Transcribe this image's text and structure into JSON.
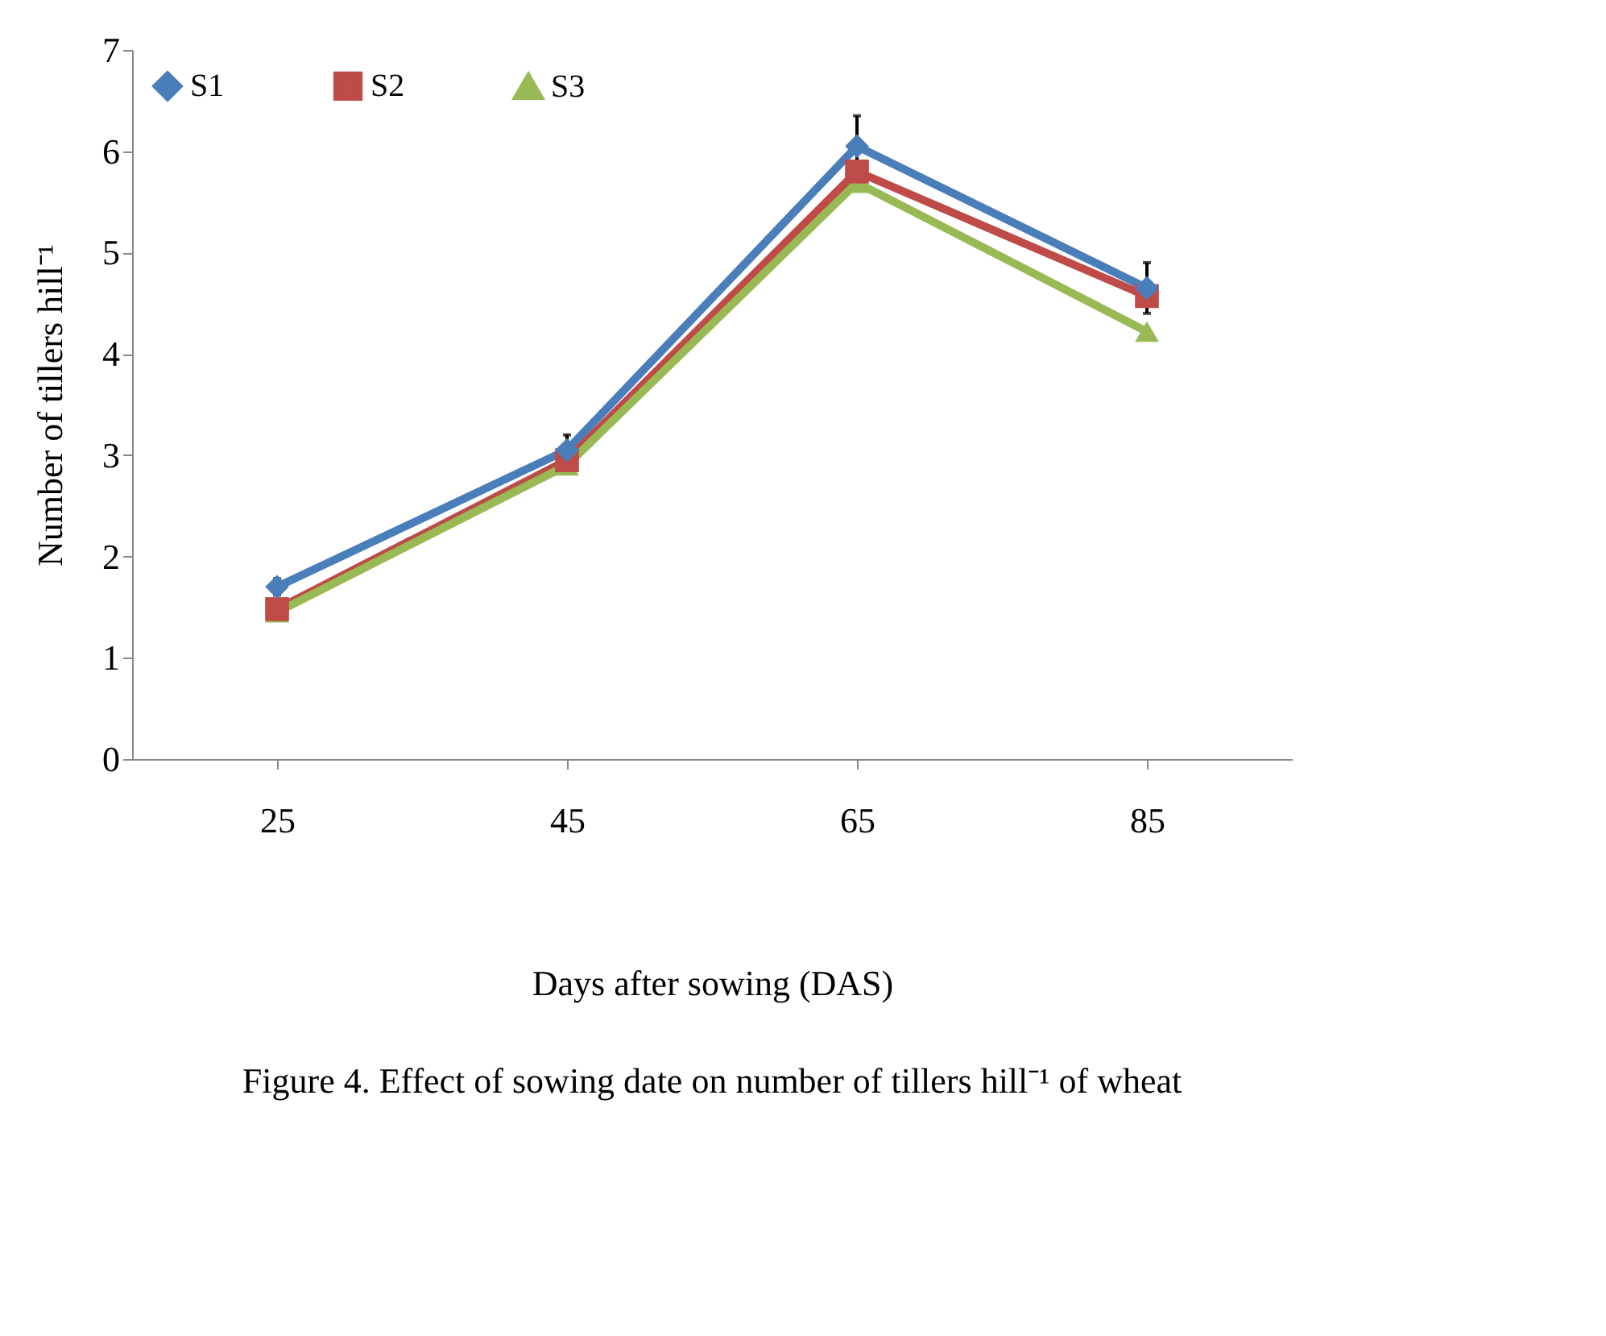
{
  "chart_data": {
    "type": "line",
    "xlabel": "Days after sowing (DAS)",
    "ylabel": "Number of tillers hill⁻¹",
    "categories": [
      "25",
      "45",
      "65",
      "85"
    ],
    "series": [
      {
        "name": "S1",
        "color": "#4a7ebb",
        "marker": "diamond",
        "values": [
          1.7,
          3.05,
          6.05,
          4.65
        ],
        "errors": [
          0.08,
          0.15,
          0.3,
          0.25
        ]
      },
      {
        "name": "S2",
        "color": "#be4b48",
        "marker": "square",
        "values": [
          1.48,
          2.95,
          5.8,
          4.57
        ]
      },
      {
        "name": "S3",
        "color": "#98b954",
        "marker": "triangle",
        "values": [
          1.45,
          2.9,
          5.69,
          4.22
        ]
      }
    ],
    "ylim": [
      0,
      7
    ],
    "yticks": [
      0,
      1,
      2,
      3,
      4,
      5,
      6,
      7
    ],
    "grid": false,
    "legend": "top left",
    "annotations": [
      "Figure 4. Effect of  sowing date on number of tillers hill⁻¹ of wheat"
    ]
  }
}
